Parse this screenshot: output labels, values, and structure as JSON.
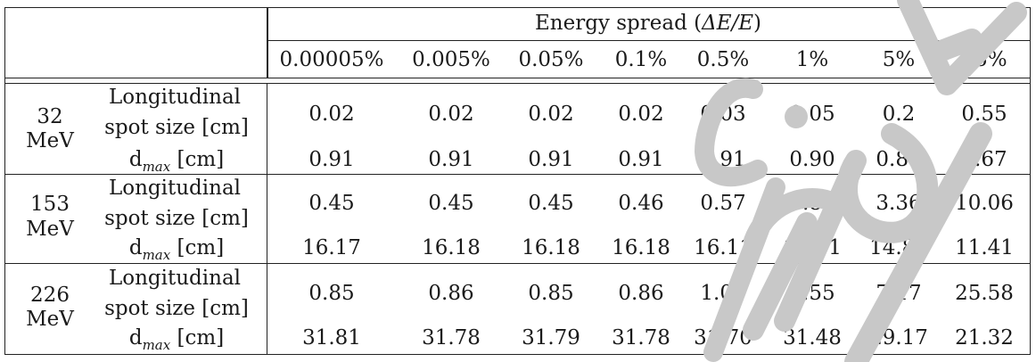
{
  "header": {
    "group_label_prefix": "Energy spread (",
    "group_label_math": "ΔE/E",
    "group_label_suffix": ")",
    "columns": [
      "0.00005%",
      "0.005%",
      "0.05%",
      "0.1%",
      "0.5%",
      "1%",
      "5%",
      "15%"
    ]
  },
  "row_labels": {
    "long_line1": "Longitudinal",
    "long_line2": "spot size [cm]",
    "dmax_main": "d",
    "dmax_sub": "max",
    "dmax_unit": "[cm]"
  },
  "groups": [
    {
      "energy_value": "32",
      "energy_unit": "MeV",
      "longitudinal": [
        "0.02",
        "0.02",
        "0.02",
        "0.02",
        "0.03",
        "0.05",
        "0.2",
        "0.55"
      ],
      "dmax": [
        "0.91",
        "0.91",
        "0.91",
        "0.91",
        "0.91",
        "0.90",
        "0.84",
        "0.67"
      ]
    },
    {
      "energy_value": "153",
      "energy_unit": "MeV",
      "longitudinal": [
        "0.45",
        "0.45",
        "0.45",
        "0.46",
        "0.57",
        "0.81",
        "3.36",
        "10.06"
      ],
      "dmax": [
        "16.17",
        "16.18",
        "16.18",
        "16.18",
        "16.11",
        "16.01",
        "14.83",
        "11.41"
      ]
    },
    {
      "energy_value": "226",
      "energy_unit": "MeV",
      "longitudinal": [
        "0.85",
        "0.86",
        "0.85",
        "0.86",
        "1.06",
        "1.55",
        "7.17",
        "25.58"
      ],
      "dmax": [
        "31.81",
        "31.78",
        "31.79",
        "31.78",
        "31.70",
        "31.48",
        "29.17",
        "21.32"
      ]
    }
  ],
  "watermark": {
    "color": "#c8c8c8"
  }
}
